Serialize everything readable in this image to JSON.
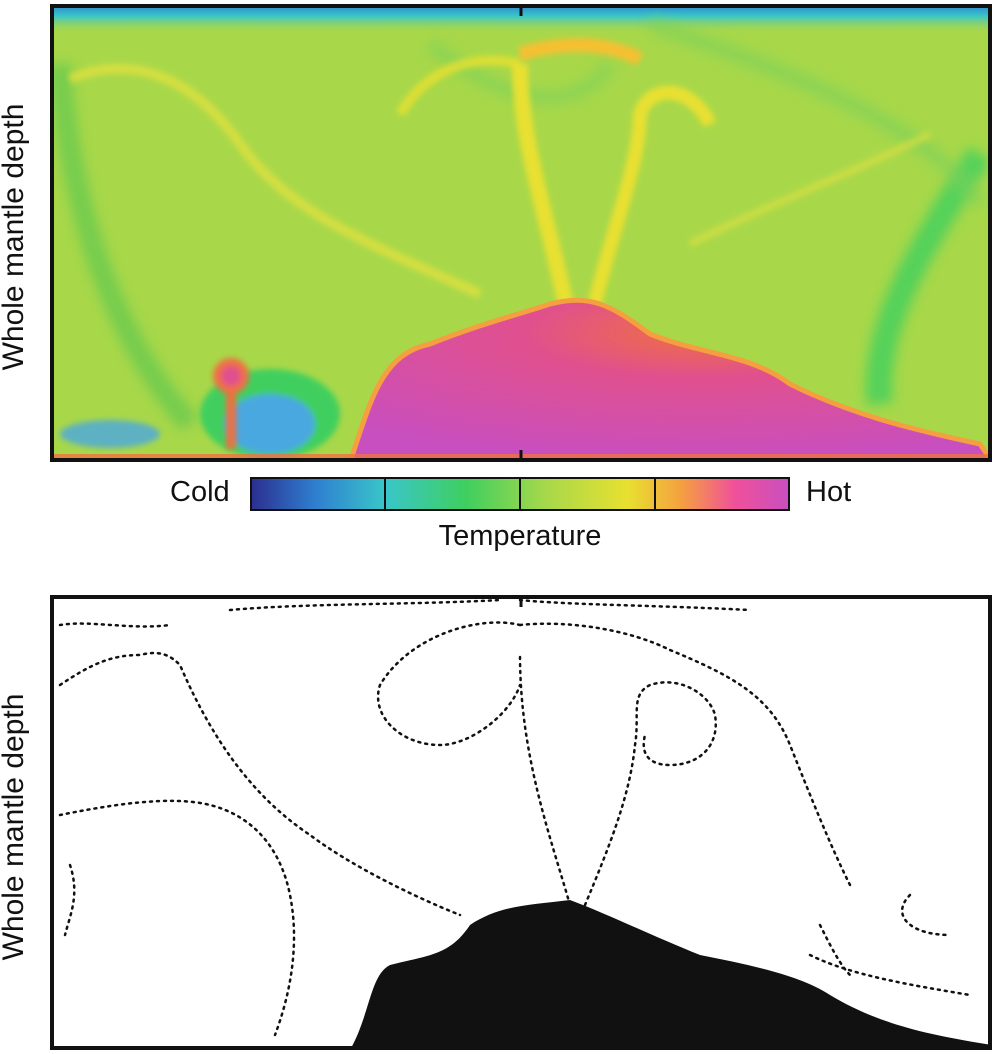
{
  "panels": {
    "top": {
      "ylabel": "Whole mantle depth"
    },
    "bottom": {
      "ylabel": "Whole mantle depth"
    }
  },
  "colorbar": {
    "title": "Temperature",
    "low_label": "Cold",
    "high_label": "Hot",
    "stops": [
      "#2b2f8f",
      "#2f7fd0",
      "#39c6c9",
      "#3fcf5f",
      "#a8d84a",
      "#e8e030",
      "#f5a040",
      "#f0509a",
      "#c84fc0"
    ]
  },
  "colors": {
    "background_mantle": "#a8d84a",
    "cold_plume": "#4aa8e0",
    "hot_pile": "#c84fc0",
    "warm_front": "#f07040",
    "yellow_stream": "#e8e030",
    "tracer": "#111111"
  }
}
